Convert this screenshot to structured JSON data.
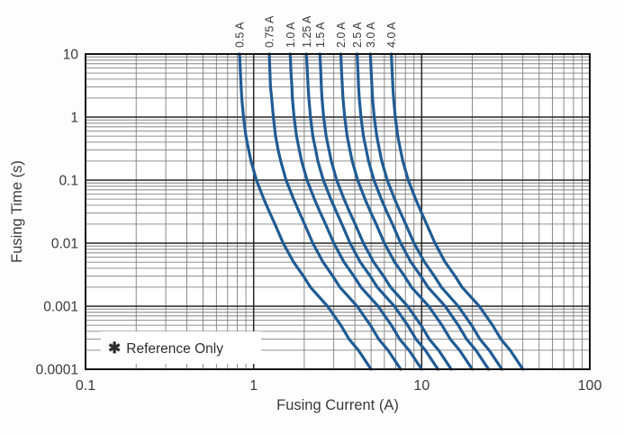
{
  "figure": {
    "background": "#fdfdfd",
    "annotation": {
      "marker": "✱",
      "text": "Reference Only"
    }
  },
  "chart_data": {
    "type": "line",
    "title": "",
    "xlabel": "Fusing Current (A)",
    "ylabel": "Fusing Time (s)",
    "x_scale": "log",
    "y_scale": "log",
    "xlim": [
      0.1,
      100
    ],
    "ylim": [
      0.0001,
      10
    ],
    "grid": {
      "major_color": "#262626",
      "minor_color": "#6f6f6f",
      "on": true
    },
    "legend_position": "curve-labels-top",
    "curve_color": "#205c94",
    "label_color": "#3a3a3a",
    "frame_color": "#141414",
    "annotation": "✱ Reference Only",
    "x_ticks": [
      {
        "v": 0.1,
        "label": "0.1"
      },
      {
        "v": 1,
        "label": "1"
      },
      {
        "v": 10,
        "label": "10"
      },
      {
        "v": 100,
        "label": "100"
      }
    ],
    "y_ticks": [
      {
        "v": 10,
        "label": "10"
      },
      {
        "v": 1,
        "label": "1"
      },
      {
        "v": 0.1,
        "label": "0.1"
      },
      {
        "v": 0.01,
        "label": "0.01"
      },
      {
        "v": 0.001,
        "label": "0.001"
      },
      {
        "v": 0.0001,
        "label": "0.0001"
      }
    ],
    "time_s": [
      10,
      5,
      3,
      2,
      1,
      0.5,
      0.3,
      0.2,
      0.1,
      0.05,
      0.03,
      0.02,
      0.01,
      0.005,
      0.003,
      0.002,
      0.001,
      0.0005,
      0.0003,
      0.0002,
      0.0001
    ],
    "series": [
      {
        "label": "0.5 A",
        "rating_A": 0.5,
        "current_A": [
          0.825,
          0.835,
          0.843,
          0.85,
          0.87,
          0.9,
          0.935,
          0.965,
          1.04,
          1.15,
          1.25,
          1.34,
          1.5,
          1.73,
          1.98,
          2.18,
          2.75,
          3.3,
          3.7,
          4.2,
          5.0
        ]
      },
      {
        "label": "0.75 A",
        "rating_A": 0.75,
        "current_A": [
          1.24,
          1.25,
          1.26,
          1.28,
          1.31,
          1.35,
          1.4,
          1.45,
          1.56,
          1.73,
          1.88,
          2.01,
          2.25,
          2.59,
          2.96,
          3.26,
          4.13,
          4.95,
          5.55,
          6.3,
          7.5
        ]
      },
      {
        "label": "1.0 A",
        "rating_A": 1.0,
        "current_A": [
          1.65,
          1.67,
          1.69,
          1.7,
          1.74,
          1.8,
          1.87,
          1.93,
          2.08,
          2.3,
          2.5,
          2.68,
          3.0,
          3.45,
          3.95,
          4.35,
          5.5,
          6.6,
          7.4,
          8.4,
          10.0
        ]
      },
      {
        "label": "1.25 A",
        "rating_A": 1.25,
        "current_A": [
          2.06,
          2.09,
          2.11,
          2.13,
          2.18,
          2.25,
          2.34,
          2.41,
          2.6,
          2.88,
          3.13,
          3.35,
          3.75,
          4.31,
          4.94,
          5.44,
          6.88,
          8.25,
          9.25,
          10.5,
          12.5
        ]
      },
      {
        "label": "1.5 A",
        "rating_A": 1.5,
        "current_A": [
          2.48,
          2.51,
          2.53,
          2.55,
          2.61,
          2.7,
          2.81,
          2.9,
          3.12,
          3.45,
          3.75,
          4.02,
          4.5,
          5.18,
          5.93,
          6.53,
          8.25,
          9.9,
          11.1,
          12.6,
          15.0
        ]
      },
      {
        "label": "2.0 A",
        "rating_A": 2.0,
        "current_A": [
          3.3,
          3.34,
          3.37,
          3.4,
          3.48,
          3.6,
          3.74,
          3.86,
          4.16,
          4.6,
          5.0,
          5.36,
          6.0,
          6.9,
          7.9,
          8.7,
          11.0,
          13.2,
          14.8,
          16.8,
          20.0
        ]
      },
      {
        "label": "2.5 A",
        "rating_A": 2.5,
        "current_A": [
          4.13,
          4.18,
          4.21,
          4.25,
          4.35,
          4.5,
          4.68,
          4.83,
          5.2,
          5.75,
          6.25,
          6.7,
          7.5,
          8.63,
          9.88,
          10.9,
          13.8,
          16.5,
          18.5,
          21.0,
          25.0
        ]
      },
      {
        "label": "3.0 A",
        "rating_A": 3.0,
        "current_A": [
          4.95,
          5.01,
          5.06,
          5.1,
          5.22,
          5.4,
          5.61,
          5.79,
          6.24,
          6.9,
          7.5,
          8.04,
          9.0,
          10.4,
          11.9,
          13.1,
          16.5,
          19.8,
          22.2,
          25.2,
          30.0
        ]
      },
      {
        "label": "4.0 A",
        "rating_A": 4.0,
        "current_A": [
          6.6,
          6.68,
          6.74,
          6.8,
          6.96,
          7.2,
          7.48,
          7.72,
          8.32,
          9.2,
          10.0,
          10.7,
          12.0,
          13.8,
          15.8,
          17.4,
          22.0,
          26.4,
          29.6,
          33.6,
          40.0
        ]
      }
    ]
  }
}
